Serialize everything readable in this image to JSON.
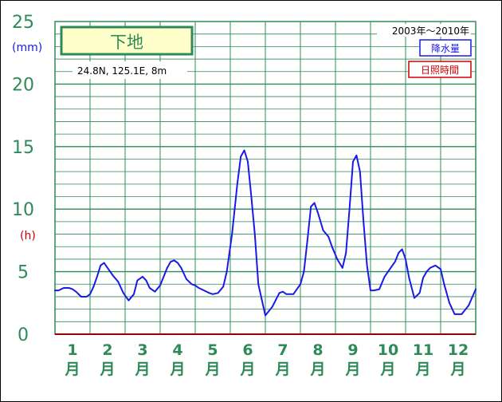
{
  "chart_data": {
    "type": "line",
    "title": "下地",
    "location": "24.8N,  125.1E,  8m",
    "period": "2003年～2010年",
    "y_unit_left": "(mm)",
    "y_unit_right": "(h)",
    "ylim": [
      0,
      25
    ],
    "y_ticks": [
      "0",
      "5",
      "10",
      "15",
      "20",
      "25"
    ],
    "y_tick_values": [
      0,
      5,
      10,
      15,
      20,
      25
    ],
    "x_ticks": [
      {
        "num": "1",
        "unit": "月"
      },
      {
        "num": "2",
        "unit": "月"
      },
      {
        "num": "3",
        "unit": "月"
      },
      {
        "num": "4",
        "unit": "月"
      },
      {
        "num": "5",
        "unit": "月"
      },
      {
        "num": "6",
        "unit": "月"
      },
      {
        "num": "7",
        "unit": "月"
      },
      {
        "num": "8",
        "unit": "月"
      },
      {
        "num": "9",
        "unit": "月"
      },
      {
        "num": "10",
        "unit": "月"
      },
      {
        "num": "11",
        "unit": "月"
      },
      {
        "num": "12",
        "unit": "月"
      }
    ],
    "xlim": [
      0.5,
      12.5
    ],
    "legend": [
      {
        "label": "降水量",
        "color": "#1a1ae6"
      },
      {
        "label": "日照時間",
        "color": "#cc0000"
      }
    ],
    "grid": true,
    "series": [
      {
        "name": "降水量",
        "color": "#1a1ae6",
        "x": [
          0.5,
          0.6,
          0.75,
          0.9,
          1.0,
          1.1,
          1.25,
          1.4,
          1.5,
          1.6,
          1.7,
          1.8,
          1.9,
          2.0,
          2.15,
          2.3,
          2.45,
          2.6,
          2.75,
          2.85,
          3.0,
          3.1,
          3.2,
          3.35,
          3.5,
          3.6,
          3.7,
          3.8,
          3.9,
          4.0,
          4.1,
          4.25,
          4.4,
          4.5,
          4.6,
          4.75,
          4.9,
          5.0,
          5.15,
          5.3,
          5.4,
          5.55,
          5.7,
          5.8,
          5.9,
          6.0,
          6.1,
          6.2,
          6.3,
          6.5,
          6.7,
          6.9,
          7.0,
          7.1,
          7.3,
          7.5,
          7.6,
          7.7,
          7.8,
          7.9,
          8.0,
          8.15,
          8.3,
          8.4,
          8.55,
          8.7,
          8.8,
          8.9,
          9.0,
          9.1,
          9.2,
          9.3,
          9.4,
          9.5,
          9.6,
          9.75,
          9.9,
          10.0,
          10.1,
          10.2,
          10.3,
          10.4,
          10.5,
          10.6,
          10.75,
          10.9,
          11.0,
          11.1,
          11.2,
          11.35,
          11.5,
          11.6,
          11.75,
          11.9,
          12.0,
          12.1,
          12.3,
          12.5
        ],
        "values": [
          3.5,
          3.5,
          3.7,
          3.7,
          3.6,
          3.4,
          3.0,
          3.0,
          3.2,
          3.8,
          4.6,
          5.5,
          5.7,
          5.3,
          4.7,
          4.2,
          3.3,
          2.7,
          3.2,
          4.3,
          4.6,
          4.3,
          3.7,
          3.4,
          3.9,
          4.6,
          5.3,
          5.8,
          5.9,
          5.7,
          5.3,
          4.4,
          4.0,
          3.9,
          3.7,
          3.5,
          3.3,
          3.2,
          3.3,
          3.8,
          5.0,
          8.0,
          12.0,
          14.2,
          14.7,
          13.8,
          11.0,
          8.0,
          4.0,
          1.5,
          2.2,
          3.3,
          3.4,
          3.2,
          3.2,
          4.0,
          5.0,
          7.5,
          10.2,
          10.5,
          9.7,
          8.3,
          7.8,
          7.0,
          6.0,
          5.3,
          6.5,
          10.0,
          13.8,
          14.3,
          13.0,
          9.0,
          5.5,
          3.5,
          3.5,
          3.6,
          4.6,
          5.0,
          5.4,
          5.8,
          6.5,
          6.8,
          6.0,
          4.5,
          2.9,
          3.3,
          4.5,
          5.0,
          5.3,
          5.5,
          5.2,
          4.0,
          2.5,
          1.6,
          1.6,
          1.6,
          2.3,
          3.6
        ]
      },
      {
        "name": "日照時間",
        "color": "#cc0000",
        "x": [],
        "values": []
      }
    ]
  }
}
